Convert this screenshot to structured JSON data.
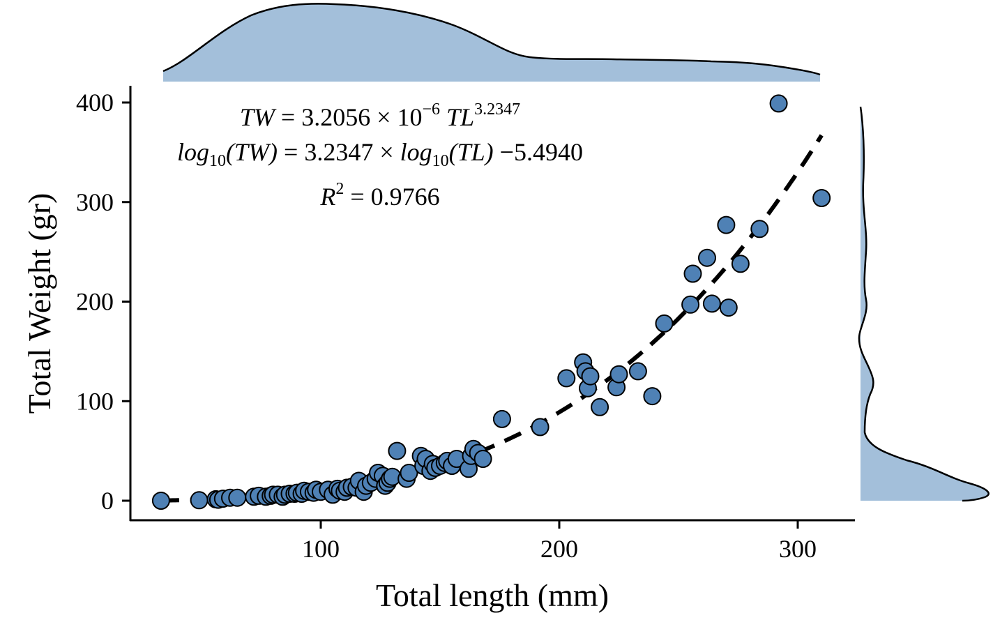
{
  "chart_data": {
    "type": "scatter",
    "xlabel": "Total length (mm)",
    "ylabel": "Total Weight (gr)",
    "xlim": [
      25,
      327
    ],
    "ylim": [
      -20,
      420
    ],
    "xticks": [
      100,
      200,
      300
    ],
    "yticks": [
      0,
      100,
      200,
      300,
      400
    ],
    "xtick_labels": [
      "100",
      "200",
      "300"
    ],
    "ytick_labels": [
      "0",
      "100",
      "200",
      "300",
      "400"
    ],
    "point_color": "#4f81b5",
    "density_color": "#a3bfda",
    "equation": {
      "line1": {
        "lhs": "TW",
        "mid": " = 3.2056 × 10",
        "sup1": "−6",
        "tl": " TL",
        "sup2": "3.2347"
      },
      "line2": {
        "log1": "log",
        "sub1": "10",
        "p1": "(TW)",
        "mid": " = 3.2347 × ",
        "log2": "log",
        "sub2": "10",
        "p2": "(TL)",
        "tail": " −5.4940"
      },
      "line3": {
        "r": "R",
        "sup": "2",
        "tail": " = 0.9766"
      }
    },
    "fit": {
      "a": 3.2056e-06,
      "b": 3.2347,
      "x_range": [
        33,
        310
      ],
      "style": "dashed"
    },
    "points": [
      [
        33,
        0
      ],
      [
        49,
        0.5
      ],
      [
        56,
        1.5
      ],
      [
        57,
        1
      ],
      [
        59,
        2
      ],
      [
        62,
        3
      ],
      [
        65,
        3
      ],
      [
        72,
        4
      ],
      [
        74,
        5
      ],
      [
        77,
        4
      ],
      [
        79,
        5
      ],
      [
        80,
        6
      ],
      [
        82,
        6
      ],
      [
        84,
        4
      ],
      [
        85,
        6
      ],
      [
        87,
        7
      ],
      [
        89,
        7
      ],
      [
        90,
        8
      ],
      [
        92,
        7
      ],
      [
        93,
        10
      ],
      [
        95,
        9
      ],
      [
        97,
        8
      ],
      [
        98,
        11
      ],
      [
        100,
        9
      ],
      [
        103,
        11
      ],
      [
        105,
        6
      ],
      [
        107,
        12
      ],
      [
        108,
        10
      ],
      [
        110,
        9
      ],
      [
        111,
        13
      ],
      [
        113,
        14
      ],
      [
        115,
        13
      ],
      [
        116,
        20
      ],
      [
        118,
        9
      ],
      [
        119,
        15
      ],
      [
        121,
        18
      ],
      [
        123,
        22
      ],
      [
        124,
        28
      ],
      [
        126,
        25
      ],
      [
        127,
        15
      ],
      [
        128,
        18
      ],
      [
        129,
        22
      ],
      [
        130,
        24
      ],
      [
        132,
        50
      ],
      [
        136,
        22
      ],
      [
        137,
        28
      ],
      [
        142,
        45
      ],
      [
        143,
        35
      ],
      [
        144,
        42
      ],
      [
        146,
        30
      ],
      [
        147,
        37
      ],
      [
        148,
        33
      ],
      [
        150,
        35
      ],
      [
        152,
        38
      ],
      [
        153,
        40
      ],
      [
        155,
        35
      ],
      [
        157,
        42
      ],
      [
        162,
        32
      ],
      [
        163,
        45
      ],
      [
        164,
        52
      ],
      [
        166,
        48
      ],
      [
        168,
        42
      ],
      [
        176,
        82
      ],
      [
        192,
        74
      ],
      [
        203,
        123
      ],
      [
        210,
        139
      ],
      [
        211,
        130
      ],
      [
        212,
        113
      ],
      [
        213,
        125
      ],
      [
        217,
        94
      ],
      [
        224,
        114
      ],
      [
        225,
        127
      ],
      [
        233,
        130
      ],
      [
        239,
        105
      ],
      [
        244,
        178
      ],
      [
        255,
        197
      ],
      [
        256,
        228
      ],
      [
        262,
        244
      ],
      [
        264,
        198
      ],
      [
        270,
        277
      ],
      [
        271,
        194
      ],
      [
        276,
        238
      ],
      [
        284,
        273
      ],
      [
        292,
        399
      ],
      [
        310,
        304
      ]
    ]
  }
}
